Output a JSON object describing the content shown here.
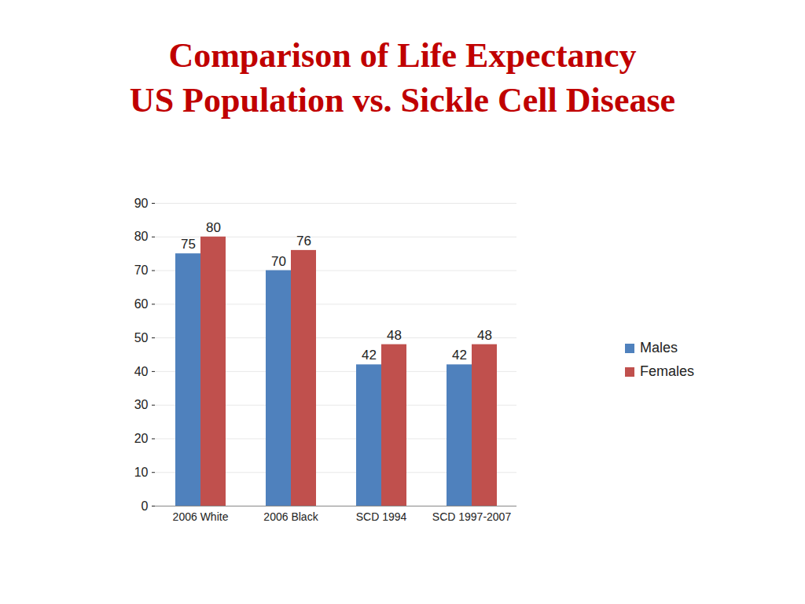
{
  "chart_data": {
    "type": "bar",
    "title": "Comparison of Life Expectancy",
    "subtitle": "US Population vs. Sickle Cell Disease",
    "categories": [
      "2006 White",
      "2006 Black",
      "SCD 1994",
      "SCD 1997-2007",
      null
    ],
    "series": [
      {
        "name": "Males",
        "color": "#4f81bd",
        "values": [
          75,
          70,
          42,
          42,
          null
        ]
      },
      {
        "name": "Females",
        "color": "#c0504d",
        "values": [
          80,
          76,
          48,
          48,
          null
        ]
      }
    ],
    "ylim": [
      0,
      90
    ],
    "yticks": [
      0,
      10,
      20,
      30,
      40,
      50,
      60,
      70,
      80,
      90
    ],
    "grid": true,
    "legend": "right",
    "data_labels": true
  }
}
